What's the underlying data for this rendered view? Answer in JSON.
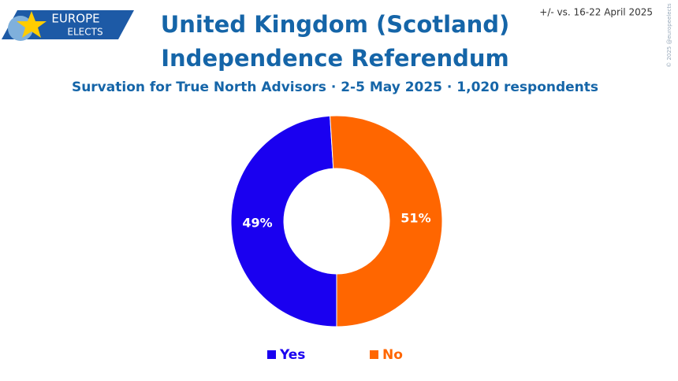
{
  "chart_data": {
    "type": "donut",
    "title": [
      "United Kingdom (Scotland)",
      "Independence Referendum"
    ],
    "subtitle": "Survation for True North Advisors · 2-5 May 2025 · 1,020 respondents",
    "note": "+/- vs. 16-22 April 2025",
    "credit": "© 2025 @europeelects",
    "categories": [
      "Yes",
      "No"
    ],
    "values": [
      49,
      51
    ],
    "value_labels": [
      "49%",
      "51%"
    ],
    "colors": [
      "#1a00f0",
      "#ff6600"
    ],
    "legend": "bottom"
  },
  "logo": {
    "lines": [
      "EUROPE",
      "ELECTS"
    ]
  }
}
